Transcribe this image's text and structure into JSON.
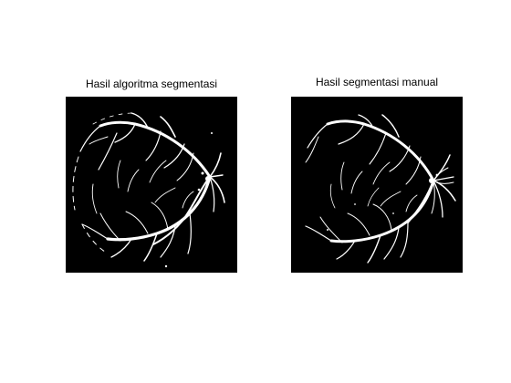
{
  "panels": [
    {
      "title": "Hasil algoritma segmentasi"
    },
    {
      "title": "Hasil segmentasi manual"
    }
  ],
  "colors": {
    "figure_background": "#ffffff",
    "image_background": "#000000",
    "vessel_color": "#ffffff"
  }
}
